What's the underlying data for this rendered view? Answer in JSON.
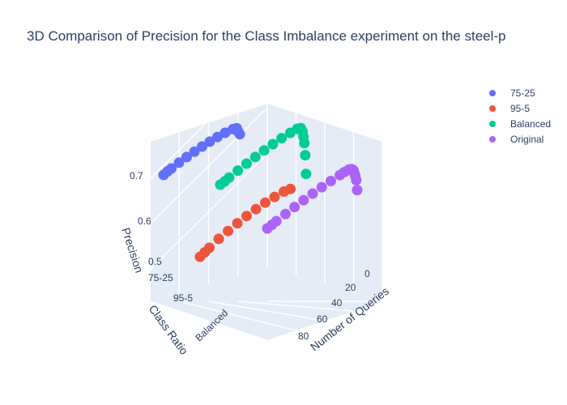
{
  "chart_data": {
    "type": "scatter",
    "title": "3D Comparison of Precision for the Class Imbalance experiment on the steel-p",
    "xlabel": "Number of Queries",
    "ylabel": "Class Ratio",
    "zlabel": "Precision",
    "categories": [
      "75-25",
      "95-5",
      "Balanced",
      "Original"
    ],
    "x_ticks": [
      "0",
      "20",
      "40",
      "60",
      "80"
    ],
    "z_ticks": [
      "0.5",
      "0.6",
      "0.7"
    ],
    "xlim": [
      0,
      100
    ],
    "zlim": [
      0.5,
      0.76
    ],
    "grid": true,
    "legend_position": "top-right",
    "series": [
      {
        "name": "75-25",
        "color": "#636efa",
        "points": [
          [
            0,
            0.72
          ],
          [
            5,
            0.727
          ],
          [
            10,
            0.731
          ],
          [
            20,
            0.739
          ],
          [
            30,
            0.746
          ],
          [
            40,
            0.752
          ],
          [
            50,
            0.757
          ],
          [
            60,
            0.761
          ],
          [
            70,
            0.764
          ],
          [
            80,
            0.765
          ],
          [
            90,
            0.763
          ],
          [
            95,
            0.758
          ],
          [
            97,
            0.74
          ],
          [
            99,
            0.725
          ]
        ]
      },
      {
        "name": "95-5",
        "color": "#ef553b",
        "points": [
          [
            0,
            0.51
          ],
          [
            5,
            0.52
          ],
          [
            10,
            0.53
          ],
          [
            20,
            0.55
          ],
          [
            30,
            0.565
          ],
          [
            40,
            0.58
          ],
          [
            50,
            0.592
          ],
          [
            60,
            0.603
          ],
          [
            70,
            0.612
          ],
          [
            80,
            0.618
          ],
          [
            90,
            0.622
          ],
          [
            97,
            0.62
          ]
        ]
      },
      {
        "name": "Balanced",
        "color": "#00cc96",
        "points": [
          [
            0,
            0.67
          ],
          [
            5,
            0.675
          ],
          [
            10,
            0.683
          ],
          [
            20,
            0.695
          ],
          [
            30,
            0.707
          ],
          [
            40,
            0.718
          ],
          [
            50,
            0.728
          ],
          [
            60,
            0.737
          ],
          [
            70,
            0.745
          ],
          [
            80,
            0.75
          ],
          [
            88,
            0.753
          ],
          [
            92,
            0.748
          ],
          [
            94,
            0.73
          ],
          [
            95,
            0.705
          ],
          [
            96,
            0.675
          ],
          [
            97,
            0.62
          ],
          [
            98,
            0.535
          ]
        ]
      },
      {
        "name": "Original",
        "color": "#ab63fa",
        "points": [
          [
            0,
            0.58
          ],
          [
            5,
            0.586
          ],
          [
            10,
            0.593
          ],
          [
            20,
            0.605
          ],
          [
            30,
            0.617
          ],
          [
            40,
            0.628
          ],
          [
            50,
            0.638
          ],
          [
            60,
            0.647
          ],
          [
            70,
            0.655
          ],
          [
            80,
            0.662
          ],
          [
            85,
            0.666
          ],
          [
            90,
            0.668
          ],
          [
            93,
            0.664
          ],
          [
            95,
            0.655
          ],
          [
            96,
            0.64
          ],
          [
            97,
            0.625
          ],
          [
            98,
            0.605
          ],
          [
            99,
            0.56
          ]
        ]
      }
    ]
  }
}
